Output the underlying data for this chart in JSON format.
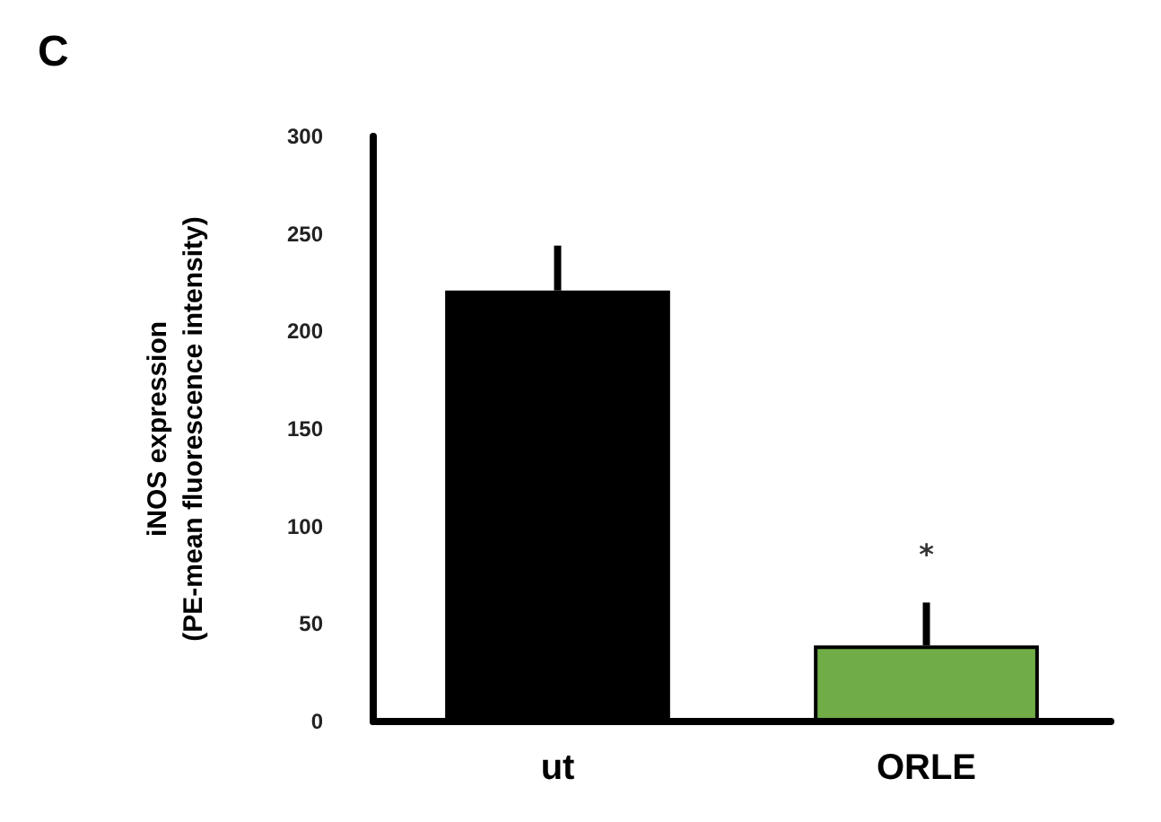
{
  "chart_data": {
    "type": "bar",
    "title": "C",
    "ylabel": "iNOS expression\n(PE-mean fluorescence intensity)",
    "categories": [
      "ut",
      "ORLE"
    ],
    "values": [
      221,
      39
    ],
    "colors": [
      "#000000",
      "#70ad47"
    ],
    "errors": [
      [
        221,
        244
      ],
      [
        39,
        61
      ]
    ],
    "ylim": [
      0,
      300
    ],
    "yticks": [
      0,
      50,
      100,
      150,
      200,
      250,
      300
    ],
    "grid": false,
    "annotations": [
      "*"
    ]
  }
}
